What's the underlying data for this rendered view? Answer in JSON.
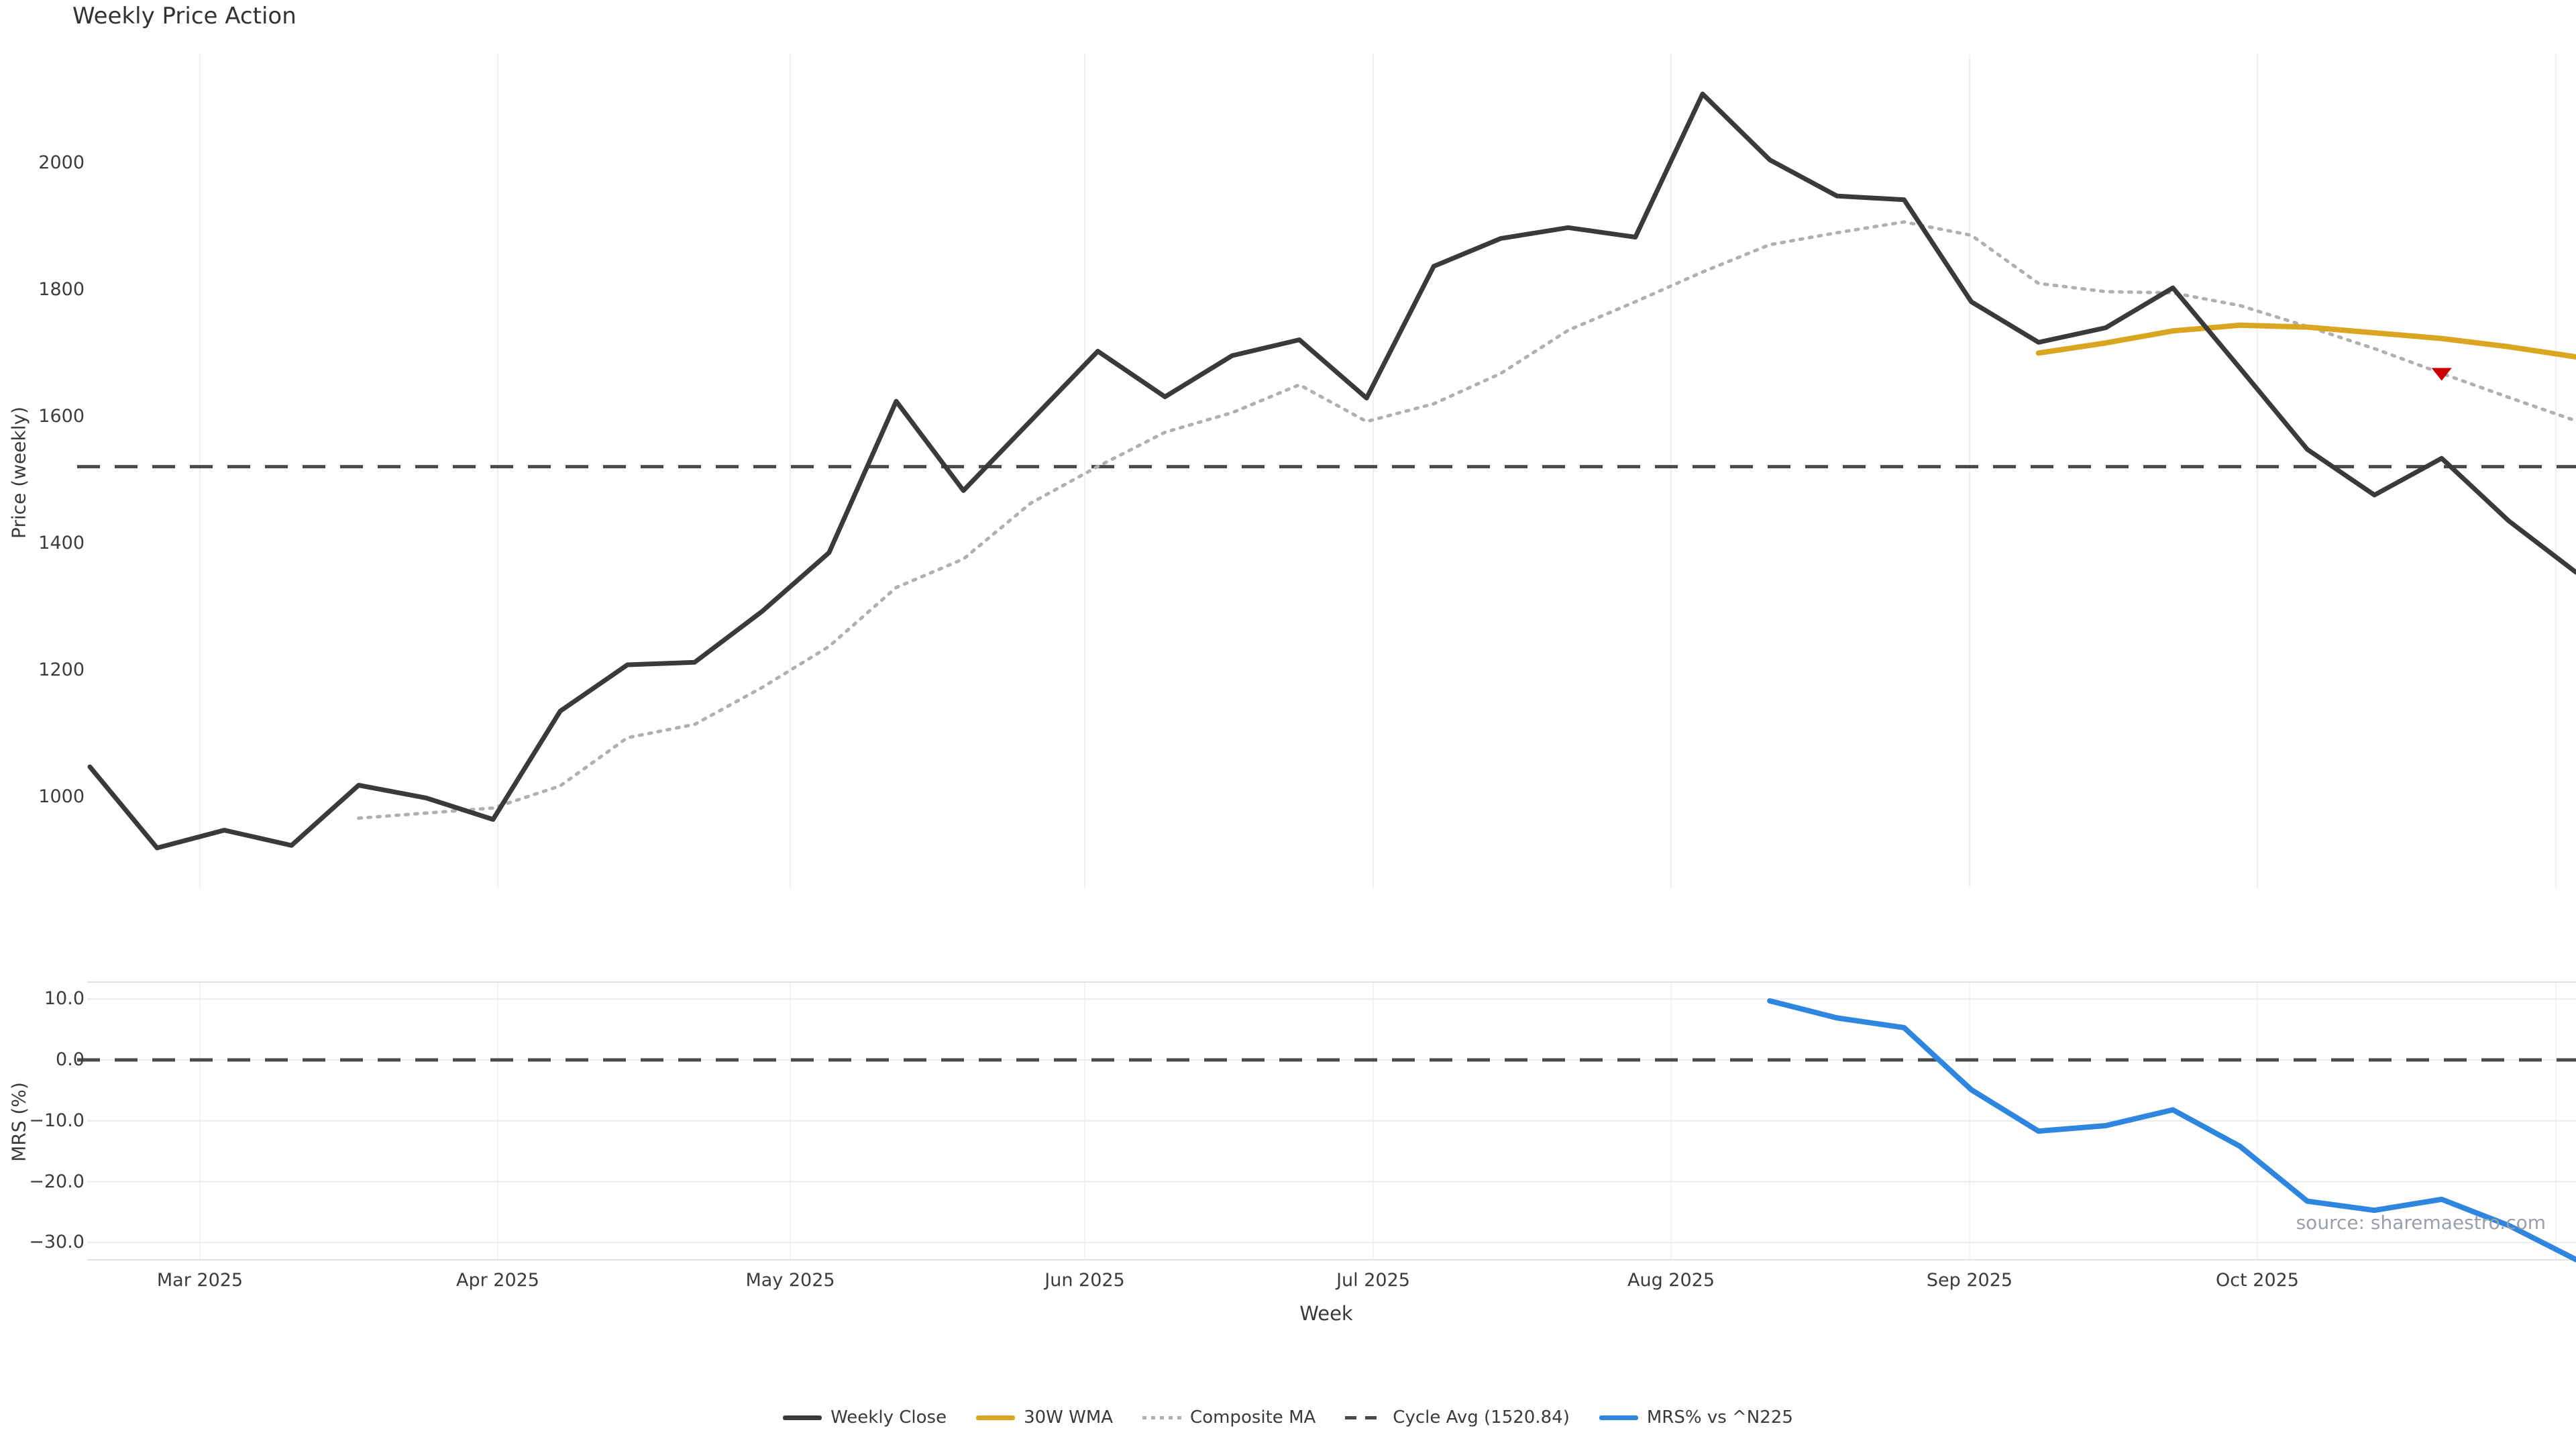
{
  "title": "Weekly Price Action",
  "price_panel": {
    "ylabel": "Price (weekly)",
    "ytick_labels": [
      "2000",
      "1800",
      "1600",
      "1400",
      "1200",
      "1000"
    ],
    "cycle_avg_value": 1520.84
  },
  "mrs_panel": {
    "ylabel": "MRS (%)",
    "ytick_labels": [
      "10.0",
      "0.0",
      "−10.0",
      "−20.0",
      "−30.0"
    ],
    "source": "source: sharemaestro.com"
  },
  "xaxis": {
    "label": "Week",
    "tick_labels": [
      "Mar 2025",
      "Apr 2025",
      "May 2025",
      "Jun 2025",
      "Jul 2025",
      "Aug 2025",
      "Sep 2025",
      "Oct 2025"
    ]
  },
  "legend": [
    {
      "label": "Weekly Close",
      "color": "#3a3a3a",
      "style": "solid"
    },
    {
      "label": "30W WMA",
      "color": "#DAA520",
      "style": "solid"
    },
    {
      "label": "Composite MA",
      "color": "#b0b0b0",
      "style": "dotted"
    },
    {
      "label": "Cycle Avg (1520.84)",
      "color": "#4a4a4a",
      "style": "dashed"
    },
    {
      "label": "MRS% vs ^N225",
      "color": "#2E86DE",
      "style": "solid"
    }
  ],
  "chart_data": {
    "type": "line",
    "xlabel": "Week",
    "x_unit": "week",
    "n_weeks": 38,
    "xticks": [
      "Mar 2025",
      "Apr 2025",
      "May 2025",
      "Jun 2025",
      "Jul 2025",
      "Aug 2025",
      "Sep 2025",
      "Oct 2025"
    ],
    "panels": [
      {
        "title": "Weekly Price Action",
        "ylabel": "Price (weekly)",
        "ylim": [
          857,
          2172
        ],
        "yticks": [
          2000,
          1800,
          1600,
          1400,
          1200,
          1000
        ],
        "grid": "vertical-months",
        "series": [
          {
            "name": "Weekly Close",
            "color": "#3a3a3a",
            "style": "solid",
            "start_week": 1,
            "values": [
              1047,
              919,
              947,
              923,
              1018,
              998,
              964,
              1135,
              1208,
              1212,
              1292,
              1385,
              1624,
              1483,
              1593,
              1703,
              1631,
              1696,
              1721,
              1629,
              1837,
              1881,
              1898,
              1883,
              2109,
              2005,
              1948,
              1942,
              1781,
              1717,
              1740,
              1803,
              1676,
              1548,
              1476,
              1534,
              1435,
              1354
            ]
          },
          {
            "name": "30W WMA",
            "color": "#DAA520",
            "style": "solid",
            "start_week": 30,
            "values": [
              1700,
              1716,
              1735,
              1744,
              1741,
              1732,
              1723,
              1710,
              1694
            ]
          },
          {
            "name": "Composite MA",
            "color": "#b0b0b0",
            "style": "dotted",
            "start_week": 5,
            "values": [
              966,
              974,
              982,
              1017,
              1093,
              1114,
              1172,
              1237,
              1330,
              1375,
              1463,
              1521,
              1575,
              1606,
              1650,
              1592,
              1620,
              1668,
              1736,
              1781,
              1828,
              1871,
              1890,
              1907,
              1886,
              1810,
              1797,
              1795,
              1775,
              1742,
              1707,
              1668,
              1630,
              1593
            ]
          },
          {
            "name": "Cycle Avg (1520.84)",
            "color": "#4a4a4a",
            "style": "dashed",
            "hline": 1520.84
          }
        ],
        "marker": {
          "shape": "triangle-down",
          "color": "#CC0000",
          "week": 36,
          "value": 1666,
          "on": "Composite MA"
        }
      },
      {
        "ylabel": "MRS (%)",
        "ylim": [
          -32.9,
          12.9
        ],
        "yticks": [
          10,
          0,
          -10,
          -20,
          -30
        ],
        "grid": "horizontal",
        "series": [
          {
            "name": "MRS% vs ^N225",
            "color": "#2E86DE",
            "style": "solid",
            "start_week": 26,
            "values": [
              9.7,
              6.9,
              5.3,
              -4.9,
              -11.7,
              -10.8,
              -8.2,
              -14.2,
              -23.2,
              -24.7,
              -22.9,
              -27.2,
              -32.8
            ]
          },
          {
            "name": "Zero line",
            "color": "#4a4a4a",
            "style": "dashed",
            "hline": 0
          }
        ]
      }
    ]
  }
}
